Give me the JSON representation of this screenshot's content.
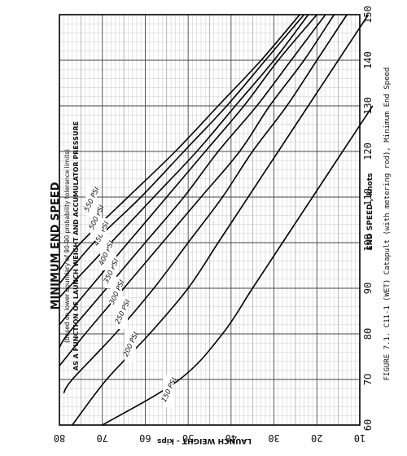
{
  "chart_data": {
    "type": "line",
    "title": "MINIMUM END SPEED",
    "subtitle": "(based on lower boundary of 90-90 probability tolerance limits)",
    "subtitle2": "AS A FUNCTION OF LAUNCH WEIGHT AND ACCUMULATOR PRESSURE",
    "xlabel": "END SPEED , knots",
    "ylabel": "LAUNCH WEIGHT - kips",
    "caption": "FIGURE 7.1.  C11-1 (WET) Catapult (with metering rod), Minimum End Speed",
    "xlim": [
      60,
      150
    ],
    "ylim": [
      10,
      80
    ],
    "x_ticks": [
      60,
      70,
      80,
      90,
      100,
      110,
      120,
      130,
      140,
      150
    ],
    "x_tick_labels": [
      "60",
      "7O",
      "80",
      "90",
      "100",
      "110",
      "120",
      "130",
      "140",
      "150"
    ],
    "y_ticks": [
      80,
      70,
      60,
      50,
      40,
      30,
      20,
      10
    ],
    "grid": true,
    "series": [
      {
        "name": "150 PSI",
        "x": [
          60,
          70,
          80,
          90,
          100,
          110,
          120,
          130
        ],
        "y": [
          70,
          52,
          42,
          35,
          28,
          21,
          14,
          7
        ]
      },
      {
        "name": "200 PSI",
        "x": [
          60,
          70,
          80,
          90,
          100,
          110,
          120,
          130,
          140,
          150
        ],
        "y": [
          77,
          69,
          59,
          50,
          43,
          36,
          29,
          22,
          15,
          8
        ]
      },
      {
        "name": "250 PSI",
        "x": [
          67,
          70,
          80,
          90,
          100,
          110,
          120,
          130,
          140,
          150
        ],
        "y": [
          79,
          77,
          67,
          58,
          50,
          42,
          35,
          27,
          20,
          13
        ]
      },
      {
        "name": "300 PSI",
        "x": [
          73,
          80,
          90,
          100,
          110,
          120,
          130,
          140,
          150
        ],
        "y": [
          80,
          74,
          65,
          56,
          47,
          38,
          31,
          23,
          16
        ]
      },
      {
        "name": "350 PSI",
        "x": [
          77,
          80,
          90,
          100,
          110,
          120,
          130,
          140,
          150
        ],
        "y": [
          80,
          78,
          69,
          60,
          51,
          43,
          34,
          26,
          18
        ]
      },
      {
        "name": "400 PSI",
        "x": [
          82,
          90,
          100,
          110,
          120,
          130,
          140,
          150
        ],
        "y": [
          80,
          73,
          64,
          55,
          46,
          37,
          29,
          20
        ]
      },
      {
        "name": "450 PSI",
        "x": [
          88,
          90,
          100,
          110,
          120,
          130,
          140,
          150
        ],
        "y": [
          80,
          78,
          68,
          58,
          48,
          39,
          30,
          22
        ]
      },
      {
        "name": "500 PSI",
        "x": [
          91,
          100,
          110,
          120,
          130,
          140,
          150
        ],
        "y": [
          80,
          72,
          61,
          51,
          41,
          32,
          23
        ]
      },
      {
        "name": "550 PSI",
        "x": [
          94,
          100,
          110,
          120,
          130,
          140,
          150
        ],
        "y": [
          80,
          75,
          64,
          53,
          43,
          33,
          24
        ]
      }
    ],
    "curve_labels": [
      "150 PSI",
      "200 PSI",
      "250 PSI",
      "300 PSI",
      "350 PSI",
      "400 PSI",
      "450 PSI",
      "500 PSI",
      "550 PSI"
    ]
  }
}
